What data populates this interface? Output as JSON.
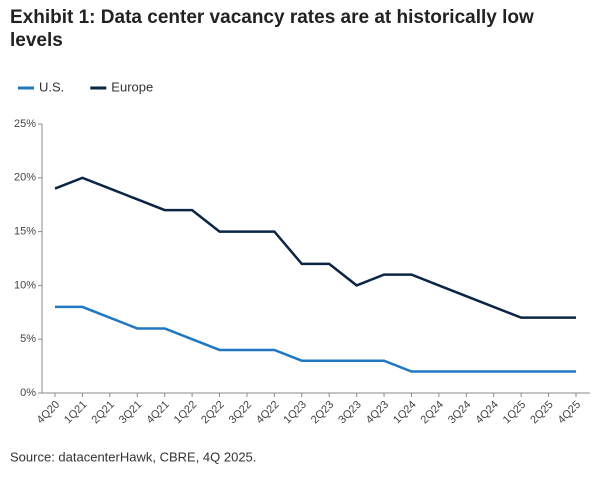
{
  "chart_data": {
    "type": "line",
    "title": "Exhibit 1: Data center vacancy rates are at historically low levels",
    "source": "Source: datacenterHawk, CBRE, 4Q 2025.",
    "categories": [
      "4Q20",
      "1Q21",
      "2Q21",
      "3Q21",
      "4Q21",
      "1Q22",
      "2Q22",
      "3Q22",
      "4Q22",
      "1Q23",
      "2Q23",
      "3Q23",
      "4Q23",
      "1Q24",
      "2Q24",
      "3Q24",
      "4Q24",
      "1Q25",
      "2Q25",
      "4Q25"
    ],
    "series": [
      {
        "name": "U.S.",
        "color": "#1f78c1",
        "values": [
          8,
          8,
          7,
          6,
          6,
          5,
          4,
          4,
          4,
          3,
          3,
          3,
          3,
          2,
          2,
          2,
          2,
          2,
          2,
          2
        ]
      },
      {
        "name": "Europe",
        "color": "#0b2545",
        "values": [
          19,
          20,
          19,
          18,
          17,
          17,
          15,
          15,
          15,
          12,
          12,
          10,
          11,
          11,
          10,
          9,
          8,
          7,
          7,
          7
        ]
      }
    ],
    "ylim": [
      0,
      25
    ],
    "yticks": [
      {
        "value": 0,
        "label": "0%"
      },
      {
        "value": 5,
        "label": "5%"
      },
      {
        "value": 10,
        "label": "10%"
      },
      {
        "value": 15,
        "label": "15%"
      },
      {
        "value": 20,
        "label": "20%"
      },
      {
        "value": 25,
        "label": "25%"
      }
    ],
    "grid": false
  }
}
